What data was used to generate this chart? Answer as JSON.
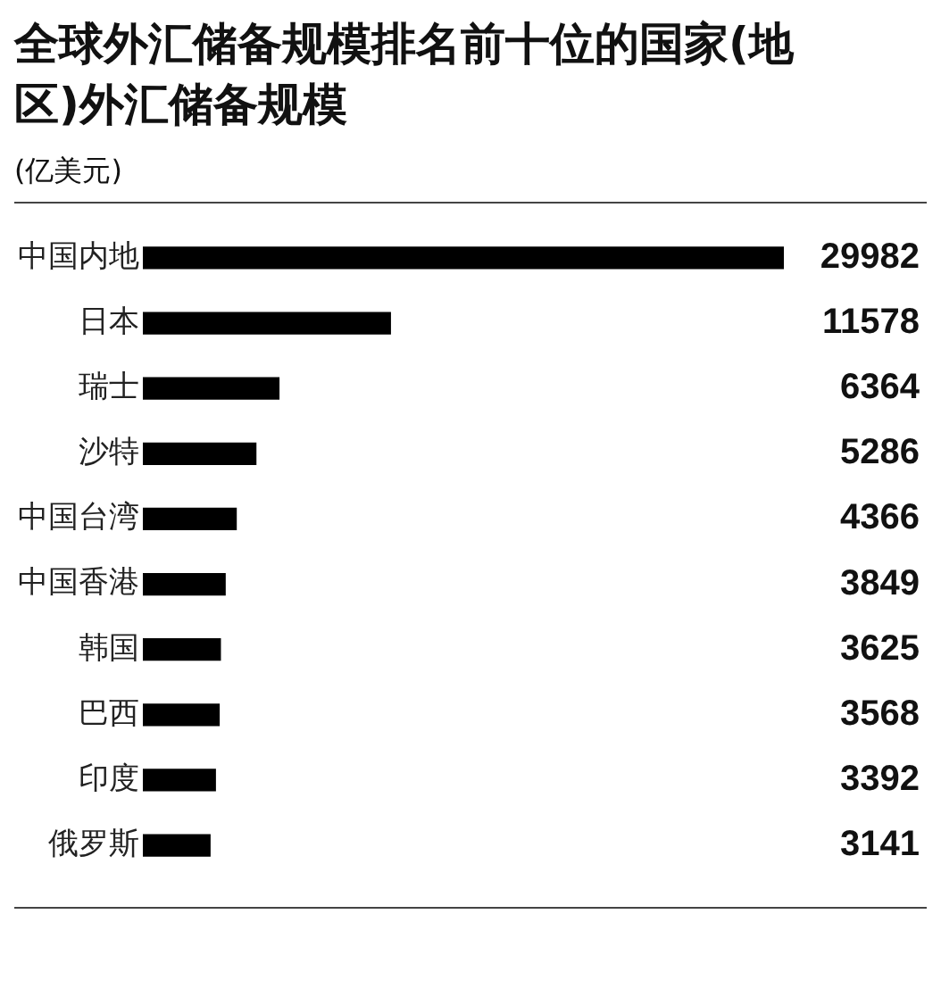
{
  "chart_data": {
    "type": "bar",
    "orientation": "horizontal",
    "title": "全球外汇储备规模排名前十位的国家(地区)外汇储备规模",
    "subtitle": "(亿美元)",
    "categories": [
      "中国内地",
      "日本",
      "瑞士",
      "沙特",
      "中国台湾",
      "中国香港",
      "韩国",
      "巴西",
      "印度",
      "俄罗斯"
    ],
    "values": [
      29982,
      11578,
      6364,
      5286,
      4366,
      3849,
      3625,
      3568,
      3392,
      3141
    ],
    "color": "#000000",
    "data_labels": true,
    "grid": false,
    "legend": false
  }
}
